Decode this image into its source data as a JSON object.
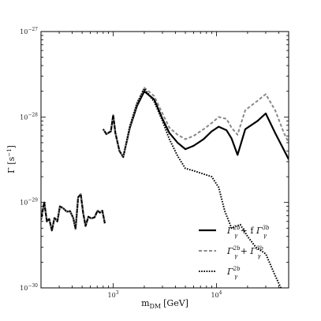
{
  "chart_data": {
    "type": "line",
    "xlabel": "m",
    "xlabel_sub": "DM",
    "xlabel_unit": "[GeV]",
    "ylabel": "Γ [s",
    "ylabel_sup": "−1",
    "ylabel_close": "]",
    "xscale": "log",
    "yscale": "log",
    "xlim": [
      200,
      50000
    ],
    "ylim": [
      1e-30,
      1e-27
    ],
    "x_ticks": [
      {
        "value": 1000,
        "base": "10",
        "exp": "3"
      },
      {
        "value": 10000,
        "base": "10",
        "exp": "4"
      }
    ],
    "y_ticks": [
      {
        "value": 1e-30,
        "base": "10",
        "exp": "−30"
      },
      {
        "value": 1e-29,
        "base": "10",
        "exp": "−29"
      },
      {
        "value": 1e-28,
        "base": "10",
        "exp": "−28"
      },
      {
        "value": 1e-27,
        "base": "10",
        "exp": "−27"
      }
    ],
    "grid": false,
    "legend_position": "bottom-right",
    "series": [
      {
        "name": "Γγ2b + f Γγ3b",
        "legend": {
          "a": "Γ",
          "a_sup": "2b",
          "a_sub": "γ",
          "op": " + f ",
          "b": "Γ",
          "b_sup": "3b",
          "b_sub": "γ"
        },
        "style": "solid",
        "color": "#000000",
        "segments": [
          [
            [
              200,
              6.3e-30
            ],
            [
              215,
              1e-29
            ],
            [
              228,
              6e-30
            ],
            [
              240,
              6.4e-30
            ],
            [
              255,
              4.7e-30
            ],
            [
              270,
              6.6e-30
            ],
            [
              288,
              6e-30
            ],
            [
              305,
              9e-30
            ],
            [
              330,
              8.5e-30
            ],
            [
              355,
              7.8e-30
            ],
            [
              382,
              7.9e-30
            ],
            [
              410,
              6.6e-30
            ],
            [
              432,
              4.9e-30
            ],
            [
              458,
              1.15e-29
            ],
            [
              485,
              1.25e-29
            ],
            [
              512,
              7.5e-30
            ],
            [
              540,
              5.3e-30
            ],
            [
              575,
              6.8e-30
            ],
            [
              615,
              6.5e-30
            ],
            [
              660,
              6.7e-30
            ],
            [
              705,
              8e-30
            ],
            [
              745,
              7.6e-30
            ],
            [
              785,
              8e-30
            ],
            [
              830,
              5.7e-30
            ]
          ],
          [
            [
              800,
              7.2e-29
            ],
            [
              860,
              6.3e-29
            ],
            [
              950,
              6.8e-29
            ],
            [
              1000,
              1.05e-28
            ],
            [
              1050,
              6.5e-29
            ],
            [
              1150,
              4e-29
            ],
            [
              1250,
              3.4e-29
            ],
            [
              1450,
              7.5e-29
            ],
            [
              1700,
              1.35e-28
            ],
            [
              2000,
              2e-28
            ],
            [
              2500,
              1.6e-28
            ],
            [
              3000,
              9.5e-29
            ],
            [
              3500,
              6.5e-29
            ],
            [
              4200,
              5e-29
            ],
            [
              5000,
              4.2e-29
            ],
            [
              6000,
              4.6e-29
            ],
            [
              7500,
              5.5e-29
            ],
            [
              9000,
              6.8e-29
            ],
            [
              10500,
              7.7e-29
            ],
            [
              12500,
              7e-29
            ],
            [
              14000,
              5.6e-29
            ],
            [
              16000,
              3.6e-29
            ],
            [
              19000,
              7.2e-29
            ],
            [
              25000,
              9e-29
            ],
            [
              30000,
              1.1e-28
            ],
            [
              37000,
              6.5e-29
            ],
            [
              45000,
              4.1e-29
            ],
            [
              50000,
              3.2e-29
            ]
          ]
        ]
      },
      {
        "name": "Γγ2b + Γγ3b",
        "legend": {
          "a": "Γ",
          "a_sup": "2b",
          "a_sub": "γ",
          "op": " + ",
          "b": "Γ",
          "b_sup": "3b",
          "b_sub": "γ"
        },
        "style": "dashed",
        "color": "#888888",
        "segments": [
          [
            [
              200,
              6.3e-30
            ],
            [
              215,
              1e-29
            ],
            [
              228,
              6e-30
            ],
            [
              240,
              6.4e-30
            ],
            [
              255,
              4.7e-30
            ],
            [
              270,
              6.6e-30
            ],
            [
              288,
              6e-30
            ],
            [
              305,
              9e-30
            ],
            [
              330,
              8.5e-30
            ],
            [
              355,
              7.8e-30
            ],
            [
              382,
              7.9e-30
            ],
            [
              410,
              6.6e-30
            ],
            [
              432,
              4.9e-30
            ],
            [
              458,
              1.15e-29
            ],
            [
              485,
              1.25e-29
            ],
            [
              512,
              7.5e-30
            ],
            [
              540,
              5.3e-30
            ],
            [
              575,
              6.8e-30
            ],
            [
              615,
              6.5e-30
            ],
            [
              660,
              6.7e-30
            ],
            [
              705,
              8e-30
            ],
            [
              745,
              7.6e-30
            ],
            [
              785,
              8e-30
            ],
            [
              830,
              5.7e-30
            ]
          ],
          [
            [
              800,
              7.2e-29
            ],
            [
              860,
              6.3e-29
            ],
            [
              950,
              6.8e-29
            ],
            [
              1000,
              1.05e-28
            ],
            [
              1050,
              6.5e-29
            ],
            [
              1150,
              4e-29
            ],
            [
              1250,
              3.4e-29
            ],
            [
              1450,
              7.8e-29
            ],
            [
              1700,
              1.45e-28
            ],
            [
              2000,
              2.2e-28
            ],
            [
              2500,
              1.75e-28
            ],
            [
              3000,
              1.1e-28
            ],
            [
              3500,
              7.5e-29
            ],
            [
              4200,
              6.2e-29
            ],
            [
              5000,
              5.5e-29
            ],
            [
              6000,
              6e-29
            ],
            [
              7500,
              7.2e-29
            ],
            [
              9000,
              8.5e-29
            ],
            [
              10500,
              1e-28
            ],
            [
              12500,
              9.5e-29
            ],
            [
              14000,
              7.5e-29
            ],
            [
              16000,
              6.2e-29
            ],
            [
              19000,
              1.2e-28
            ],
            [
              25000,
              1.55e-28
            ],
            [
              30000,
              1.85e-28
            ],
            [
              37000,
              1.2e-28
            ],
            [
              45000,
              6.5e-29
            ],
            [
              50000,
              5e-29
            ]
          ]
        ]
      },
      {
        "name": "Γγ2b",
        "legend": {
          "a": "Γ",
          "a_sup": "2b",
          "a_sub": "γ",
          "op": "",
          "b": "",
          "b_sup": "",
          "b_sub": ""
        },
        "style": "dotted",
        "color": "#000000",
        "segments": [
          [
            [
              200,
              6.3e-30
            ],
            [
              215,
              1e-29
            ],
            [
              228,
              6e-30
            ],
            [
              240,
              6.4e-30
            ],
            [
              255,
              4.7e-30
            ],
            [
              270,
              6.6e-30
            ],
            [
              288,
              6e-30
            ],
            [
              305,
              9e-30
            ],
            [
              330,
              8.5e-30
            ],
            [
              355,
              7.8e-30
            ],
            [
              382,
              7.9e-30
            ],
            [
              410,
              6.6e-30
            ],
            [
              432,
              4.9e-30
            ],
            [
              458,
              1.15e-29
            ],
            [
              485,
              1.25e-29
            ],
            [
              512,
              7.5e-30
            ],
            [
              540,
              5.3e-30
            ],
            [
              575,
              6.8e-30
            ],
            [
              615,
              6.5e-30
            ],
            [
              660,
              6.7e-30
            ],
            [
              705,
              8e-30
            ],
            [
              745,
              7.6e-30
            ],
            [
              785,
              8e-30
            ],
            [
              830,
              5.7e-30
            ]
          ],
          [
            [
              800,
              7.2e-29
            ],
            [
              860,
              6.3e-29
            ],
            [
              950,
              6.8e-29
            ],
            [
              1000,
              1.05e-28
            ],
            [
              1050,
              6.5e-29
            ],
            [
              1150,
              4e-29
            ],
            [
              1250,
              3.4e-29
            ],
            [
              1450,
              7.8e-29
            ],
            [
              1700,
              1.45e-28
            ],
            [
              2000,
              2.15e-28
            ],
            [
              2500,
              1.5e-28
            ],
            [
              3000,
              9e-29
            ],
            [
              3500,
              5.5e-29
            ],
            [
              4200,
              3.5e-29
            ],
            [
              5000,
              2.5e-29
            ],
            [
              6000,
              2.35e-29
            ],
            [
              7500,
              2.15e-29
            ],
            [
              9000,
              2e-29
            ],
            [
              10500,
              1.5e-29
            ],
            [
              12000,
              8e-30
            ],
            [
              14000,
              5e-30
            ],
            [
              17000,
              5.5e-30
            ],
            [
              20000,
              4e-30
            ],
            [
              24000,
              3e-30
            ],
            [
              30000,
              2.5e-30
            ],
            [
              36000,
              1.5e-30
            ],
            [
              42000,
              1e-30
            ]
          ]
        ]
      }
    ]
  }
}
